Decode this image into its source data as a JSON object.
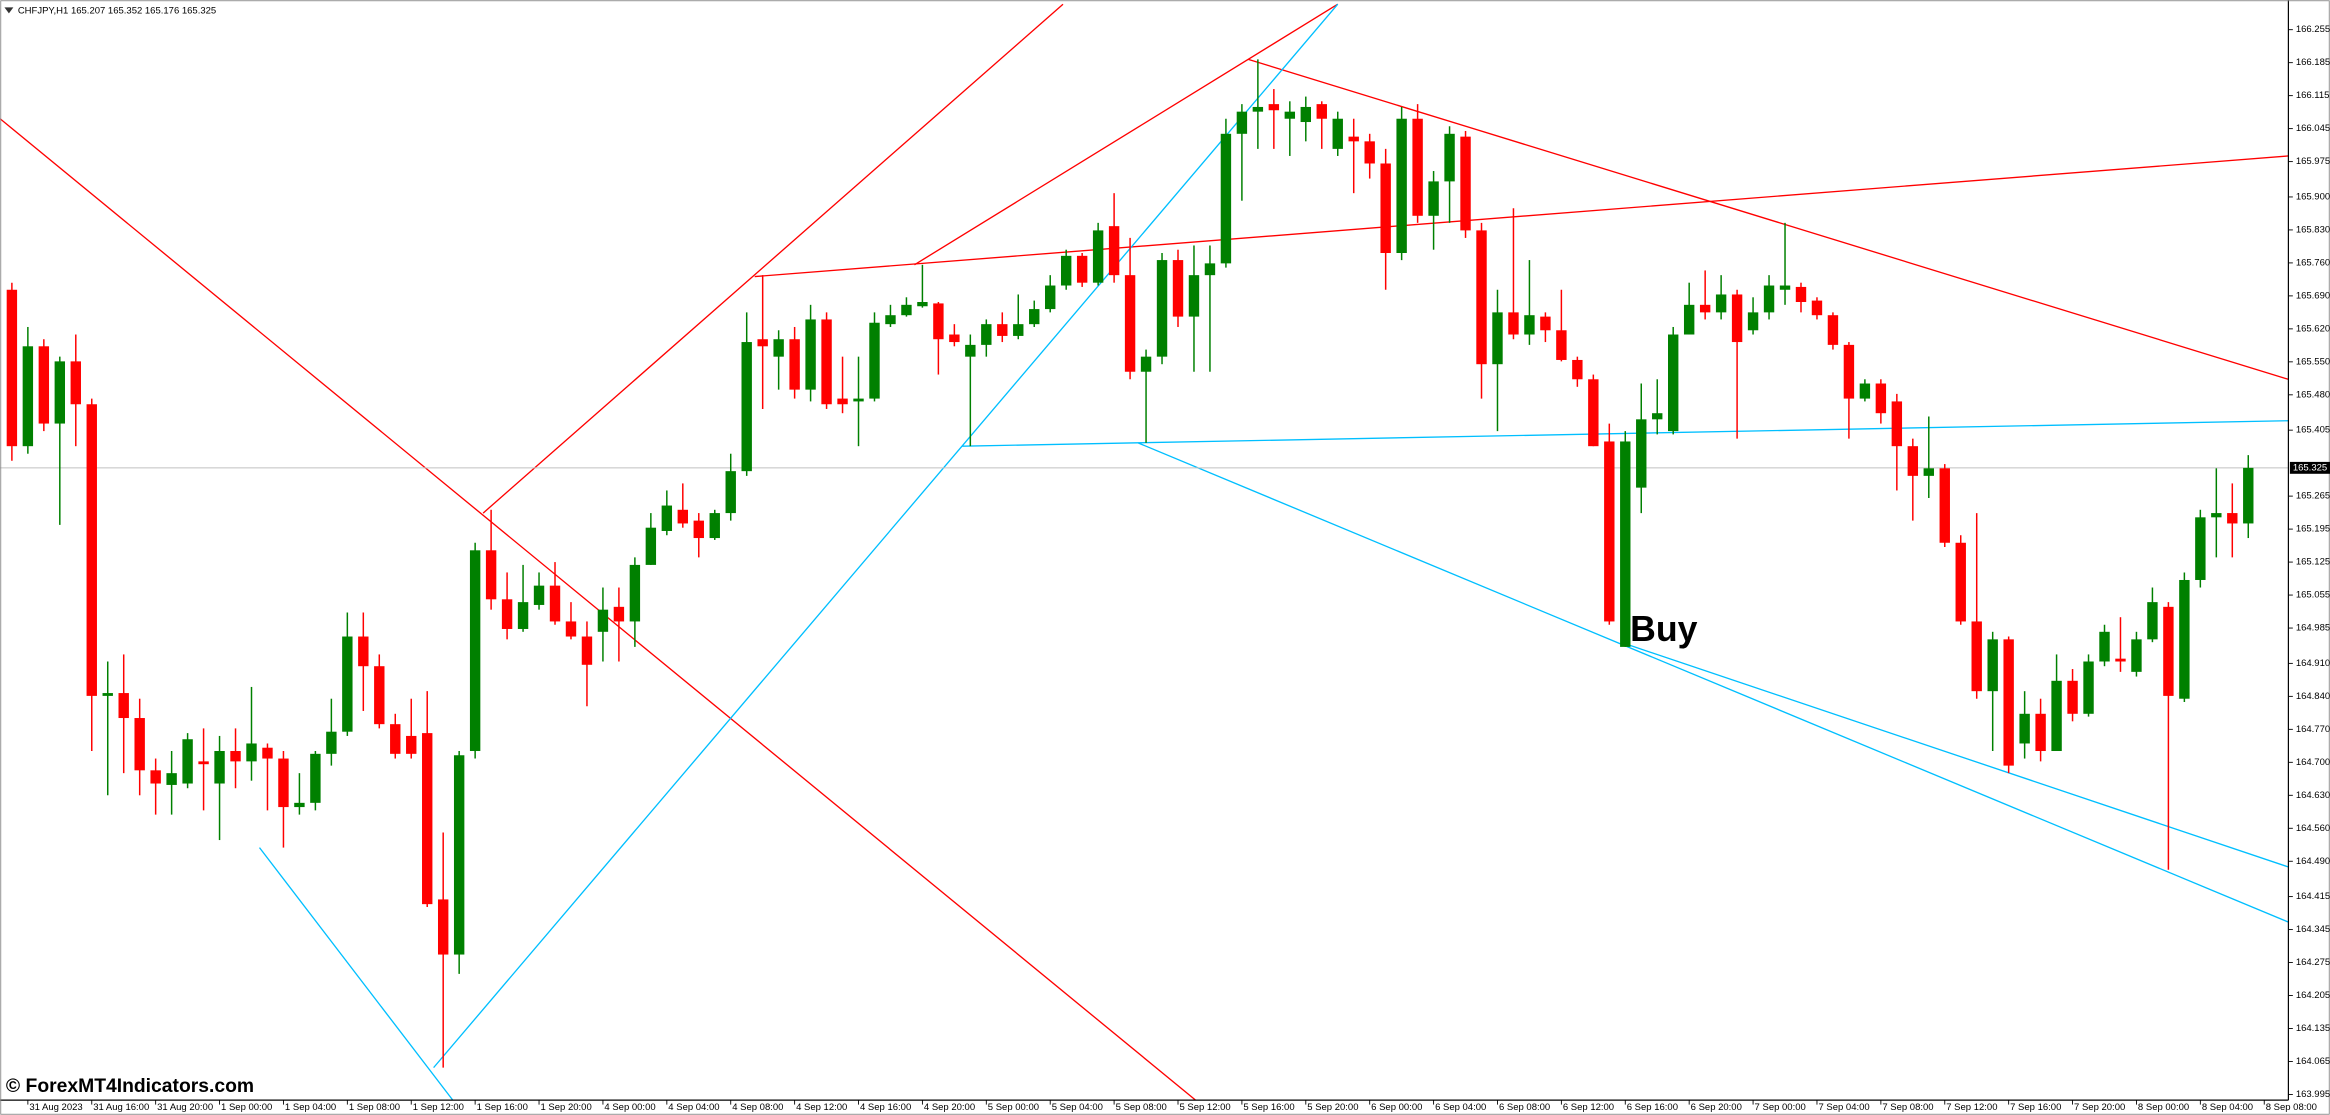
{
  "chart_data": {
    "type": "candlestick",
    "title": "CHFJPY,H1 165.207 165.352 165.176 165.325",
    "categories": [
      null,
      "31 Aug 2023",
      null,
      null,
      null,
      "31 Aug 16:00",
      null,
      null,
      null,
      "31 Aug 20:00",
      null,
      null,
      null,
      "1 Sep 00:00",
      null,
      null,
      null,
      "1 Sep 04:00",
      null,
      null,
      null,
      "1 Sep 08:00",
      null,
      null,
      null,
      "1 Sep 12:00",
      null,
      null,
      null,
      "1 Sep 16:00",
      null,
      null,
      null,
      "1 Sep 20:00",
      null,
      null,
      null,
      "4 Sep 00:00",
      null,
      null,
      null,
      "4 Sep 04:00",
      null,
      null,
      null,
      "4 Sep 08:00",
      null,
      null,
      null,
      "4 Sep 12:00",
      null,
      null,
      null,
      "4 Sep 16:00",
      null,
      null,
      null,
      "4 Sep 20:00",
      null,
      null,
      null,
      "5 Sep 00:00",
      null,
      null,
      null,
      "5 Sep 04:00",
      null,
      null,
      null,
      "5 Sep 08:00",
      null,
      null,
      null,
      "5 Sep 12:00",
      null,
      null,
      null,
      "5 Sep 16:00",
      null,
      null,
      null,
      "5 Sep 20:00",
      null,
      null,
      null,
      "6 Sep 00:00",
      null,
      null,
      null,
      "6 Sep 04:00",
      null,
      null,
      null,
      "6 Sep 08:00",
      null,
      null,
      null,
      "6 Sep 12:00",
      null,
      null,
      null,
      "6 Sep 16:00",
      null,
      null,
      null,
      "6 Sep 20:00",
      null,
      null,
      null,
      "7 Sep 00:00",
      null,
      null,
      null,
      "7 Sep 04:00",
      null,
      null,
      null,
      "7 Sep 08:00",
      null,
      null,
      null,
      "7 Sep 12:00",
      null,
      null,
      null,
      "7 Sep 16:00",
      null,
      null,
      null,
      "7 Sep 20:00",
      null,
      null,
      null,
      "8 Sep 00:00",
      null,
      null,
      null,
      "8 Sep 04:00",
      null,
      null,
      null
    ],
    "x_end_label": "8 Sep 08:00",
    "open": [
      165.703,
      165.371,
      165.583,
      165.419,
      165.551,
      165.46,
      164.841,
      164.847,
      164.794,
      164.683,
      164.652,
      164.655,
      164.702,
      164.655,
      164.724,
      164.702,
      164.731,
      164.708,
      164.605,
      164.614,
      164.718,
      164.765,
      164.967,
      164.904,
      164.781,
      164.756,
      164.762,
      164.409,
      164.292,
      164.724,
      165.15,
      165.046,
      164.983,
      165.034,
      165.075,
      164.999,
      164.967,
      164.977,
      165.03,
      164.999,
      165.119,
      165.191,
      165.236,
      165.213,
      165.176,
      165.229,
      165.318,
      165.598,
      165.561,
      165.598,
      165.491,
      165.64,
      165.472,
      165.466,
      165.472,
      165.63,
      165.649,
      165.668,
      165.674,
      165.608,
      165.561,
      165.586,
      165.63,
      165.605,
      165.63,
      165.662,
      165.712,
      165.775,
      165.718,
      165.838,
      165.734,
      165.529,
      165.561,
      165.766,
      165.646,
      165.734,
      165.759,
      166.034,
      166.081,
      166.097,
      166.066,
      166.059,
      166.097,
      166.002,
      166.028,
      166.018,
      165.971,
      165.781,
      166.066,
      165.86,
      165.933,
      166.028,
      165.829,
      165.545,
      165.655,
      165.608,
      165.646,
      165.617,
      165.554,
      165.513,
      165.381,
      164.945,
      165.283,
      165.428,
      165.403,
      165.608,
      165.671,
      165.655,
      165.693,
      165.617,
      165.655,
      165.703,
      165.709,
      165.68,
      165.649,
      165.586,
      165.472,
      165.504,
      165.466,
      165.371,
      165.308,
      165.324,
      165.166,
      164.999,
      164.851,
      164.961,
      164.74,
      164.803,
      164.724,
      164.873,
      164.803,
      164.914,
      164.92,
      164.892,
      164.961,
      165.03,
      164.835,
      165.087,
      165.22,
      165.229,
      165.207
    ],
    "high": [
      165.718,
      165.624,
      165.598,
      165.561,
      165.608,
      165.472,
      164.914,
      164.929,
      164.835,
      164.708,
      164.724,
      164.762,
      164.772,
      164.756,
      164.772,
      164.86,
      164.74,
      164.724,
      164.677,
      164.724,
      164.835,
      165.018,
      165.018,
      164.929,
      164.803,
      164.835,
      164.851,
      164.551,
      164.724,
      165.166,
      165.236,
      165.103,
      165.119,
      165.103,
      165.125,
      165.04,
      164.999,
      165.071,
      165.071,
      165.135,
      165.229,
      165.277,
      165.292,
      165.229,
      165.236,
      165.355,
      165.655,
      165.734,
      165.617,
      165.624,
      165.671,
      165.655,
      165.561,
      165.561,
      165.655,
      165.671,
      165.687,
      165.756,
      165.677,
      165.63,
      165.608,
      165.64,
      165.655,
      165.693,
      165.68,
      165.734,
      165.788,
      165.781,
      165.845,
      165.908,
      165.813,
      165.576,
      165.781,
      165.788,
      165.797,
      165.797,
      166.066,
      166.097,
      166.192,
      166.129,
      166.103,
      166.113,
      166.103,
      166.081,
      166.066,
      166.034,
      166.002,
      166.091,
      166.097,
      165.955,
      166.05,
      166.04,
      165.845,
      165.703,
      165.876,
      165.766,
      165.655,
      165.703,
      165.561,
      165.523,
      165.419,
      165.403,
      165.504,
      165.513,
      165.624,
      165.718,
      165.744,
      165.734,
      165.703,
      165.687,
      165.734,
      165.845,
      165.718,
      165.687,
      165.655,
      165.592,
      165.513,
      165.513,
      165.482,
      165.387,
      165.434,
      165.333,
      165.182,
      165.229,
      164.977,
      164.967,
      164.851,
      164.835,
      164.929,
      164.898,
      164.929,
      164.992,
      165.008,
      164.977,
      165.071,
      165.04,
      165.103,
      165.236,
      165.324,
      165.292,
      165.352
    ],
    "low": [
      165.34,
      165.355,
      165.403,
      165.204,
      165.371,
      164.724,
      164.63,
      164.677,
      164.63,
      164.589,
      164.589,
      164.645,
      164.598,
      164.535,
      164.645,
      164.661,
      164.598,
      164.519,
      164.589,
      164.598,
      164.693,
      164.756,
      164.809,
      164.772,
      164.708,
      164.708,
      164.393,
      164.052,
      164.251,
      164.708,
      165.024,
      164.961,
      164.977,
      165.024,
      164.992,
      164.961,
      164.819,
      164.914,
      164.914,
      164.945,
      165.119,
      165.182,
      165.198,
      165.135,
      165.172,
      165.213,
      165.308,
      165.45,
      165.491,
      165.472,
      165.466,
      165.45,
      165.441,
      165.371,
      165.466,
      165.624,
      165.646,
      165.665,
      165.523,
      165.583,
      165.371,
      165.561,
      165.592,
      165.598,
      165.624,
      165.655,
      165.703,
      165.709,
      165.712,
      165.718,
      165.513,
      165.378,
      165.545,
      165.624,
      165.529,
      165.529,
      165.75,
      165.892,
      166.002,
      166.002,
      165.987,
      166.018,
      166.002,
      165.987,
      165.908,
      165.939,
      165.703,
      165.766,
      165.845,
      165.788,
      165.845,
      165.813,
      165.472,
      165.403,
      165.598,
      165.586,
      165.592,
      165.551,
      165.497,
      165.371,
      164.992,
      164.945,
      165.229,
      165.396,
      165.396,
      165.608,
      165.64,
      165.64,
      165.387,
      165.608,
      165.64,
      165.671,
      165.655,
      165.64,
      165.576,
      165.387,
      165.466,
      165.419,
      165.277,
      165.213,
      165.261,
      165.157,
      164.992,
      164.835,
      164.724,
      164.677,
      164.708,
      164.702,
      164.724,
      164.787,
      164.797,
      164.904,
      164.892,
      164.882,
      164.955,
      164.472,
      164.828,
      165.071,
      165.135,
      165.135,
      165.176
    ],
    "close": [
      165.371,
      165.583,
      165.419,
      165.551,
      165.46,
      164.841,
      164.847,
      164.794,
      164.683,
      164.655,
      164.677,
      164.749,
      164.696,
      164.724,
      164.702,
      164.74,
      164.708,
      164.605,
      164.614,
      164.718,
      164.765,
      164.967,
      164.904,
      164.781,
      164.718,
      164.718,
      164.399,
      164.292,
      164.715,
      165.15,
      165.046,
      164.983,
      165.04,
      165.075,
      164.999,
      164.967,
      164.907,
      165.024,
      164.999,
      165.119,
      165.198,
      165.245,
      165.207,
      165.176,
      165.229,
      165.318,
      165.592,
      165.583,
      165.598,
      165.491,
      165.64,
      165.46,
      165.46,
      165.472,
      165.633,
      165.649,
      165.671,
      165.677,
      165.598,
      165.592,
      165.586,
      165.63,
      165.605,
      165.63,
      165.662,
      165.712,
      165.775,
      165.718,
      165.829,
      165.734,
      165.529,
      165.561,
      165.766,
      165.646,
      165.734,
      165.759,
      166.034,
      166.081,
      166.091,
      166.084,
      166.081,
      166.091,
      166.066,
      166.066,
      166.018,
      165.971,
      165.781,
      166.066,
      165.86,
      165.933,
      166.034,
      165.829,
      165.545,
      165.655,
      165.608,
      165.649,
      165.617,
      165.554,
      165.513,
      165.371,
      164.999,
      165.381,
      165.428,
      165.441,
      165.608,
      165.671,
      165.655,
      165.693,
      165.592,
      165.655,
      165.712,
      165.712,
      165.677,
      165.649,
      165.586,
      165.472,
      165.504,
      165.441,
      165.371,
      165.308,
      165.324,
      165.166,
      164.999,
      164.851,
      164.961,
      164.693,
      164.803,
      164.724,
      164.873,
      164.803,
      164.914,
      164.977,
      164.914,
      164.961,
      165.04,
      164.841,
      165.087,
      165.22,
      165.229,
      165.207,
      165.325
    ],
    "up_color": "#008000",
    "down_color": "#ff0000",
    "ylim": [
      163.983,
      166.318
    ],
    "yticks": [
      166.255,
      166.185,
      166.115,
      166.045,
      165.975,
      {
        "value": 165.9,
        "label": "165.900"
      },
      {
        "value": 165.83,
        "label": "165.830"
      },
      {
        "value": 165.76,
        "label": "165.760"
      },
      {
        "value": 165.69,
        "label": "165.690"
      },
      {
        "value": 165.62,
        "label": "165.620"
      },
      {
        "value": 165.55,
        "label": "165.550"
      },
      {
        "value": 165.48,
        "label": "165.480"
      },
      165.405,
      165.265,
      165.195,
      165.125,
      165.055,
      164.985,
      {
        "value": 164.91,
        "label": "164.910"
      },
      {
        "value": 164.84,
        "label": "164.840"
      },
      {
        "value": 164.77,
        "label": "164.770"
      },
      {
        "value": 164.7,
        "label": "164.700"
      },
      {
        "value": 164.63,
        "label": "164.630"
      },
      {
        "value": 164.56,
        "label": "164.560"
      },
      {
        "value": 164.49,
        "label": "164.490"
      },
      164.415,
      164.345,
      164.275,
      164.205,
      164.135,
      164.065,
      163.995
    ],
    "current_price": 165.325,
    "trendlines": [
      {
        "color": "#ff0000",
        "x": [
          -0.74,
          74.1
        ],
        "y": [
          166.066,
          163.983
        ]
      },
      {
        "color": "#ff0000",
        "x": [
          29.5,
          65.8
        ],
        "y": [
          165.229,
          166.309
        ]
      },
      {
        "color": "#ff0000",
        "x": [
          46.5,
          142.5
        ],
        "y": [
          165.731,
          165.987
        ]
      },
      {
        "color": "#ff0000",
        "x": [
          56.5,
          83
        ],
        "y": [
          165.756,
          166.309
        ]
      },
      {
        "color": "#ff0000",
        "x": [
          77.4,
          142.5
        ],
        "y": [
          166.192,
          165.513
        ]
      },
      {
        "color": "#00bfff",
        "x": [
          15.5,
          27.6
        ],
        "y": [
          164.519,
          163.983
        ]
      },
      {
        "color": "#00bfff",
        "x": [
          26.4,
          83
        ],
        "y": [
          164.052,
          166.309
        ]
      },
      {
        "color": "#00bfff",
        "x": [
          59.5,
          142.5
        ],
        "y": [
          165.371,
          165.425
        ]
      },
      {
        "color": "#00bfff",
        "x": [
          70.5,
          142.5
        ],
        "y": [
          165.378,
          164.361
        ]
      },
      {
        "color": "#00bfff",
        "x": [
          100.7,
          142.5
        ],
        "y": [
          164.955,
          164.478
        ]
      }
    ],
    "annotation": "Buy",
    "watermark": "© ForexMT4Indicators.com"
  }
}
